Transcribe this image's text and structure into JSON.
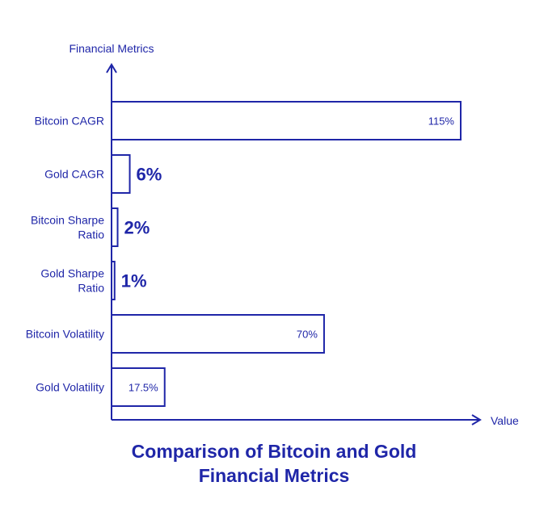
{
  "chart_data": {
    "type": "bar",
    "orientation": "horizontal",
    "title_lines": [
      "Comparison of Bitcoin and Gold",
      "Financial Metrics"
    ],
    "ylabel": "Financial Metrics",
    "xlabel": "Value",
    "categories": [
      [
        "Bitcoin CAGR"
      ],
      [
        "Gold CAGR"
      ],
      [
        "Bitcoin Sharpe",
        "Ratio"
      ],
      [
        "Gold Sharpe",
        "Ratio"
      ],
      [
        "Bitcoin Volatility"
      ],
      [
        "Gold Volatility"
      ]
    ],
    "values": [
      115,
      6,
      2,
      1,
      70,
      17.5
    ],
    "value_labels": [
      "115%",
      "6%",
      "2%",
      "1%",
      "70%",
      "17.5%"
    ],
    "xlim": [
      0,
      115
    ],
    "grid": false,
    "legend": "none",
    "colors": {
      "stroke": "#1f26a8",
      "fill": "#ffffff",
      "text": "#1f26a8"
    }
  }
}
